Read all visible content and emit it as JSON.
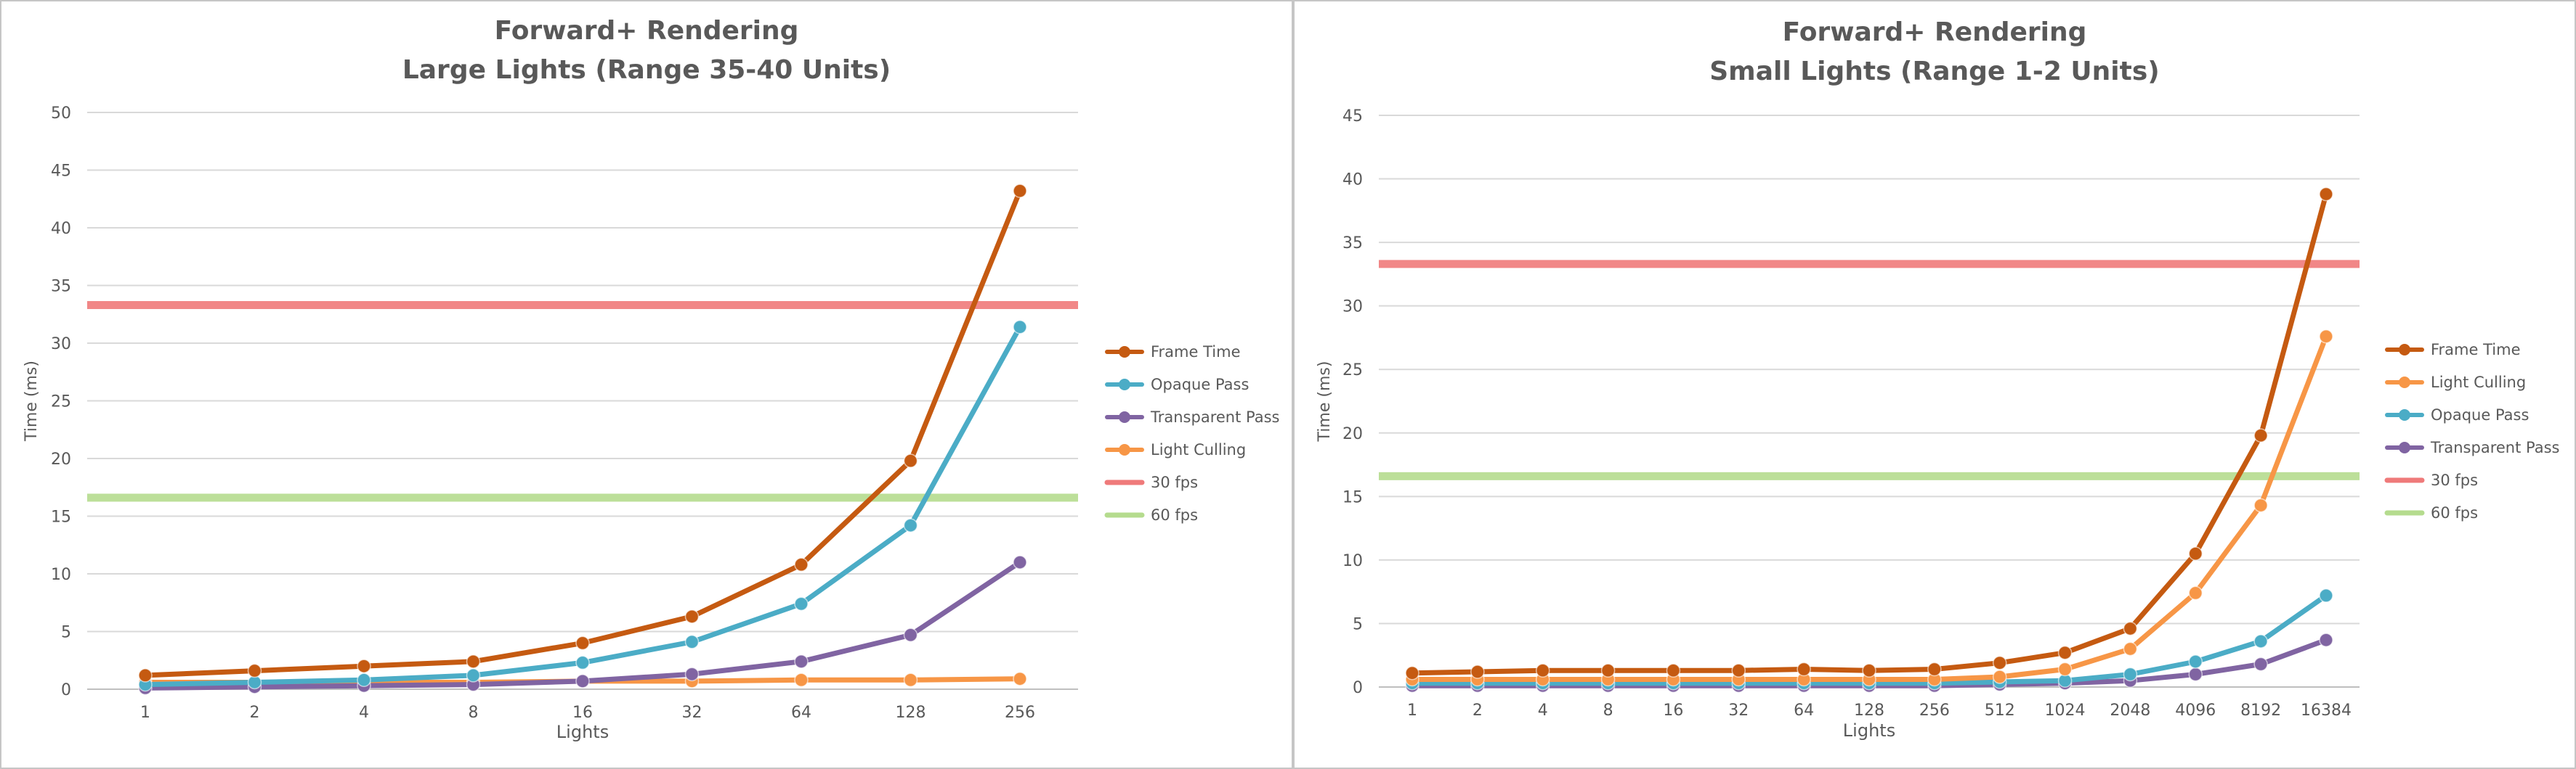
{
  "chart_data": [
    {
      "type": "line",
      "title": "Forward+ Rendering",
      "subtitle": "Large Lights (Range 35-40 Units)",
      "xlabel": "Lights",
      "ylabel": "Time (ms)",
      "ylim": [
        0,
        50
      ],
      "ytick_step": 5,
      "grid": true,
      "legend_position": "right",
      "categories": [
        "1",
        "2",
        "4",
        "8",
        "16",
        "32",
        "64",
        "128",
        "256"
      ],
      "series": [
        {
          "name": "Frame Time",
          "color": "#c55a11",
          "values": [
            1.2,
            1.6,
            2.0,
            2.4,
            4.0,
            6.3,
            10.8,
            19.8,
            43.2
          ]
        },
        {
          "name": "Opaque Pass",
          "color": "#4bacc6",
          "values": [
            0.4,
            0.6,
            0.8,
            1.2,
            2.3,
            4.1,
            7.4,
            14.2,
            31.4
          ]
        },
        {
          "name": "Transparent Pass",
          "color": "#8064a2",
          "values": [
            0.1,
            0.2,
            0.3,
            0.4,
            0.7,
            1.3,
            2.4,
            4.7,
            11.0
          ]
        },
        {
          "name": "Light Culling",
          "color": "#f79646",
          "values": [
            0.6,
            0.6,
            0.6,
            0.6,
            0.7,
            0.7,
            0.8,
            0.8,
            0.9
          ]
        }
      ],
      "reference_lines": [
        {
          "name": "30 fps",
          "color": "#ef7a7a",
          "value": 33.3
        },
        {
          "name": "60 fps",
          "color": "#b5dc8e",
          "value": 16.6
        }
      ]
    },
    {
      "type": "line",
      "title": "Forward+ Rendering",
      "subtitle": "Small Lights (Range 1-2 Units)",
      "xlabel": "Lights",
      "ylabel": "Time (ms)",
      "ylim": [
        0,
        45
      ],
      "ytick_step": 5,
      "grid": true,
      "legend_position": "right",
      "categories": [
        "1",
        "2",
        "4",
        "8",
        "16",
        "32",
        "64",
        "128",
        "256",
        "512",
        "1024",
        "2048",
        "4096",
        "8192",
        "16384"
      ],
      "series": [
        {
          "name": "Frame Time",
          "color": "#c55a11",
          "values": [
            1.1,
            1.2,
            1.3,
            1.3,
            1.3,
            1.3,
            1.4,
            1.3,
            1.4,
            1.9,
            2.7,
            4.6,
            10.5,
            19.8,
            38.8
          ]
        },
        {
          "name": "Light Culling",
          "color": "#f79646",
          "values": [
            0.6,
            0.6,
            0.6,
            0.6,
            0.6,
            0.6,
            0.6,
            0.6,
            0.6,
            0.8,
            1.4,
            3.0,
            7.4,
            14.3,
            27.6
          ]
        },
        {
          "name": "Opaque Pass",
          "color": "#4bacc6",
          "values": [
            0.3,
            0.3,
            0.3,
            0.3,
            0.3,
            0.3,
            0.3,
            0.3,
            0.3,
            0.4,
            0.5,
            1.0,
            2.0,
            3.6,
            7.2
          ]
        },
        {
          "name": "Transparent Pass",
          "color": "#8064a2",
          "values": [
            0.1,
            0.1,
            0.1,
            0.1,
            0.1,
            0.1,
            0.1,
            0.1,
            0.1,
            0.2,
            0.3,
            0.5,
            1.0,
            1.8,
            3.7
          ]
        }
      ],
      "reference_lines": [
        {
          "name": "30 fps",
          "color": "#ef7a7a",
          "value": 33.3
        },
        {
          "name": "60 fps",
          "color": "#b5dc8e",
          "value": 16.6
        }
      ]
    }
  ]
}
